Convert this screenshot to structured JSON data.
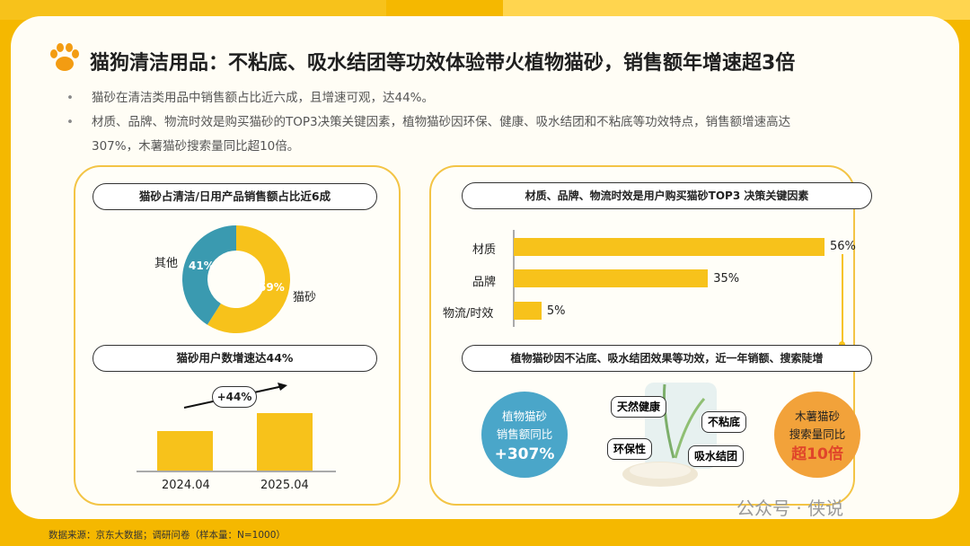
{
  "title": "猫狗清洁用品：不粘底、吸水结团等功效体验带火植物猫砂，销售额年增速超3倍",
  "bullets": [
    "猫砂在清洁类用品中销售额占比近六成，且增速可观，达44%。",
    "材质、品牌、物流时效是购买猫砂的TOP3决策关键因素，植物猫砂因环保、健康、吸水结团和不粘底等功效特点，销售额增速高达",
    "307%，木薯猫砂搜索量同比超10倍。"
  ],
  "left_panel": {
    "donut_title": "猫砂占清洁/日用产品销售额占比近6成",
    "bar_title": "猫砂用户数增速达44%",
    "growth_label": "+44%"
  },
  "right_panel": {
    "bar_title": "材质、品牌、物流时效是用户购买猫砂TOP3 决策关键因素",
    "bottom_title": "植物猫砂因不沾底、吸水结团效果等功效，近一年销额、搜索陡增",
    "circle_left": {
      "line1": "植物猫砂",
      "line2": "销售额同比",
      "value": "+307%"
    },
    "circle_right": {
      "line1": "木薯猫砂",
      "line2": "搜索量同比",
      "value": "超10倍"
    },
    "tags": [
      "天然健康",
      "不粘底",
      "环保性",
      "吸水结团"
    ]
  },
  "chart_data": [
    {
      "type": "pie",
      "title": "猫砂占清洁/日用产品销售额占比近6成",
      "categories": [
        "猫砂",
        "其他"
      ],
      "values": [
        59,
        41
      ],
      "labels": [
        "59%",
        "41%"
      ],
      "colors": [
        "#f7c21b",
        "#3a9ab0"
      ]
    },
    {
      "type": "bar",
      "title": "猫砂用户数增速达44%",
      "categories": [
        "2024.04",
        "2025.04"
      ],
      "values": [
        1,
        1.44
      ],
      "annotation": "+44%"
    },
    {
      "type": "bar",
      "orientation": "horizontal",
      "title": "材质、品牌、物流时效是用户购买猫砂TOP3 决策关键因素",
      "categories": [
        "材质",
        "品牌",
        "物流/时效"
      ],
      "values": [
        56,
        35,
        5
      ],
      "labels": [
        "56%",
        "35%",
        "5%"
      ]
    }
  ],
  "colors": {
    "accent": "#f7c21b",
    "teal": "#3a9ab0",
    "red": "#e0452a",
    "circle_blue": "#4aa6c9",
    "circle_orange": "#f2a23a"
  },
  "source": "数据来源：京东大数据；调研问卷（样本量：N=1000）",
  "watermark": "公众号 · 侠说"
}
